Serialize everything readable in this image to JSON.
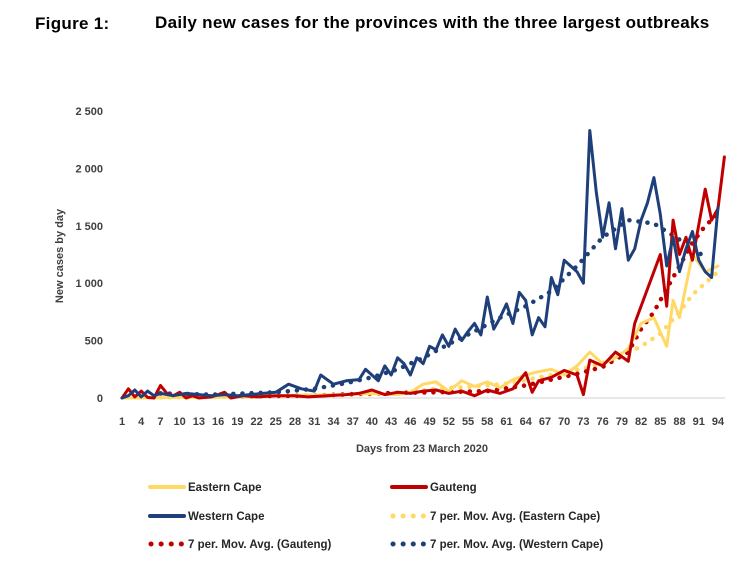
{
  "figure": {
    "label": "Figure 1:",
    "title": "Daily new cases for the provinces with the three largest outbreaks"
  },
  "chart_data": {
    "type": "line",
    "title": "Daily new cases for the provinces with the three largest outbreaks",
    "xlabel": "Days from 23 March 2020",
    "ylabel": "New cases by day",
    "xlim": [
      1,
      95
    ],
    "ylim": [
      0,
      2500
    ],
    "y_ticks": [
      0,
      500,
      1000,
      1500,
      2000,
      2500
    ],
    "y_tick_labels": [
      "0",
      "500",
      "1 000",
      "1 500",
      "2 000",
      "2 500"
    ],
    "x_ticks": [
      1,
      4,
      7,
      10,
      13,
      16,
      19,
      22,
      25,
      28,
      31,
      34,
      37,
      40,
      43,
      46,
      49,
      52,
      55,
      58,
      61,
      64,
      67,
      70,
      73,
      76,
      79,
      82,
      85,
      88,
      91,
      94
    ],
    "x_tick_labels": [
      "1",
      "4",
      "7",
      "10",
      "13",
      "16",
      "19",
      "22",
      "25",
      "28",
      "31",
      "34",
      "37",
      "40",
      "43",
      "46",
      "49",
      "52",
      "55",
      "58",
      "61",
      "64",
      "67",
      "70",
      "73",
      "76",
      "79",
      "82",
      "85",
      "88",
      "91",
      "94"
    ],
    "grid": false,
    "legend_position": "bottom",
    "series": [
      {
        "name": "Eastern Cape",
        "color": "#ffd966",
        "style": "solid",
        "points": [
          [
            1,
            0
          ],
          [
            5,
            0
          ],
          [
            10,
            5
          ],
          [
            15,
            5
          ],
          [
            20,
            10
          ],
          [
            25,
            20
          ],
          [
            30,
            25
          ],
          [
            35,
            30
          ],
          [
            40,
            40
          ],
          [
            44,
            30
          ],
          [
            46,
            50
          ],
          [
            48,
            120
          ],
          [
            50,
            140
          ],
          [
            52,
            60
          ],
          [
            54,
            150
          ],
          [
            56,
            100
          ],
          [
            58,
            140
          ],
          [
            60,
            90
          ],
          [
            62,
            160
          ],
          [
            64,
            200
          ],
          [
            66,
            230
          ],
          [
            68,
            250
          ],
          [
            70,
            200
          ],
          [
            72,
            280
          ],
          [
            74,
            400
          ],
          [
            76,
            300
          ],
          [
            78,
            350
          ],
          [
            80,
            430
          ],
          [
            82,
            650
          ],
          [
            84,
            700
          ],
          [
            86,
            450
          ],
          [
            87,
            850
          ],
          [
            88,
            700
          ],
          [
            90,
            1250
          ],
          [
            92,
            1100
          ],
          [
            94,
            1150
          ]
        ]
      },
      {
        "name": "Gauteng",
        "color": "#c00000",
        "style": "solid",
        "points": [
          [
            1,
            0
          ],
          [
            2,
            80
          ],
          [
            3,
            10
          ],
          [
            4,
            60
          ],
          [
            5,
            5
          ],
          [
            6,
            0
          ],
          [
            7,
            110
          ],
          [
            8,
            40
          ],
          [
            9,
            20
          ],
          [
            10,
            50
          ],
          [
            11,
            0
          ],
          [
            12,
            20
          ],
          [
            13,
            0
          ],
          [
            15,
            10
          ],
          [
            17,
            50
          ],
          [
            18,
            0
          ],
          [
            20,
            20
          ],
          [
            22,
            10
          ],
          [
            25,
            20
          ],
          [
            28,
            20
          ],
          [
            30,
            10
          ],
          [
            33,
            20
          ],
          [
            36,
            30
          ],
          [
            38,
            40
          ],
          [
            40,
            70
          ],
          [
            42,
            30
          ],
          [
            44,
            50
          ],
          [
            46,
            40
          ],
          [
            48,
            60
          ],
          [
            50,
            70
          ],
          [
            52,
            40
          ],
          [
            54,
            60
          ],
          [
            56,
            20
          ],
          [
            58,
            70
          ],
          [
            60,
            40
          ],
          [
            62,
            80
          ],
          [
            64,
            220
          ],
          [
            65,
            50
          ],
          [
            66,
            150
          ],
          [
            68,
            180
          ],
          [
            70,
            240
          ],
          [
            72,
            200
          ],
          [
            73,
            30
          ],
          [
            74,
            330
          ],
          [
            76,
            280
          ],
          [
            78,
            400
          ],
          [
            80,
            320
          ],
          [
            81,
            650
          ],
          [
            83,
            950
          ],
          [
            85,
            1250
          ],
          [
            86,
            800
          ],
          [
            87,
            1550
          ],
          [
            88,
            1250
          ],
          [
            89,
            1400
          ],
          [
            90,
            1200
          ],
          [
            92,
            1820
          ],
          [
            93,
            1550
          ],
          [
            94,
            1650
          ],
          [
            95,
            2100
          ]
        ]
      },
      {
        "name": "Western Cape",
        "color": "#1f3f7a",
        "style": "solid",
        "points": [
          [
            1,
            0
          ],
          [
            2,
            20
          ],
          [
            3,
            70
          ],
          [
            4,
            10
          ],
          [
            5,
            60
          ],
          [
            6,
            20
          ],
          [
            7,
            40
          ],
          [
            9,
            20
          ],
          [
            11,
            40
          ],
          [
            13,
            30
          ],
          [
            15,
            20
          ],
          [
            17,
            30
          ],
          [
            19,
            20
          ],
          [
            21,
            30
          ],
          [
            23,
            40
          ],
          [
            25,
            50
          ],
          [
            27,
            120
          ],
          [
            29,
            80
          ],
          [
            31,
            60
          ],
          [
            32,
            200
          ],
          [
            34,
            120
          ],
          [
            36,
            150
          ],
          [
            38,
            160
          ],
          [
            39,
            250
          ],
          [
            41,
            150
          ],
          [
            42,
            280
          ],
          [
            43,
            200
          ],
          [
            44,
            350
          ],
          [
            45,
            300
          ],
          [
            46,
            200
          ],
          [
            47,
            350
          ],
          [
            48,
            300
          ],
          [
            49,
            450
          ],
          [
            50,
            420
          ],
          [
            51,
            550
          ],
          [
            52,
            450
          ],
          [
            53,
            600
          ],
          [
            54,
            500
          ],
          [
            55,
            580
          ],
          [
            56,
            650
          ],
          [
            57,
            550
          ],
          [
            58,
            880
          ],
          [
            59,
            600
          ],
          [
            60,
            700
          ],
          [
            61,
            820
          ],
          [
            62,
            650
          ],
          [
            63,
            920
          ],
          [
            64,
            850
          ],
          [
            65,
            550
          ],
          [
            66,
            700
          ],
          [
            67,
            620
          ],
          [
            68,
            1050
          ],
          [
            69,
            900
          ],
          [
            70,
            1200
          ],
          [
            71,
            1150
          ],
          [
            72,
            1100
          ],
          [
            73,
            1000
          ],
          [
            74,
            2330
          ],
          [
            75,
            1800
          ],
          [
            76,
            1400
          ],
          [
            77,
            1700
          ],
          [
            78,
            1300
          ],
          [
            79,
            1650
          ],
          [
            80,
            1200
          ],
          [
            81,
            1300
          ],
          [
            82,
            1550
          ],
          [
            83,
            1700
          ],
          [
            84,
            1920
          ],
          [
            85,
            1600
          ],
          [
            86,
            1150
          ],
          [
            87,
            1400
          ],
          [
            88,
            1100
          ],
          [
            89,
            1300
          ],
          [
            90,
            1450
          ],
          [
            91,
            1200
          ],
          [
            92,
            1100
          ],
          [
            93,
            1050
          ],
          [
            94,
            1660
          ]
        ]
      },
      {
        "name": "7 per. Mov. Avg. (Eastern Cape)",
        "color": "#ffd966",
        "style": "dotted",
        "points": [
          [
            7,
            5
          ],
          [
            20,
            10
          ],
          [
            35,
            25
          ],
          [
            44,
            40
          ],
          [
            50,
            80
          ],
          [
            56,
            100
          ],
          [
            62,
            130
          ],
          [
            66,
            180
          ],
          [
            70,
            220
          ],
          [
            74,
            270
          ],
          [
            78,
            340
          ],
          [
            82,
            450
          ],
          [
            85,
            560
          ],
          [
            88,
            750
          ],
          [
            90,
            900
          ],
          [
            92,
            1000
          ],
          [
            94,
            1100
          ]
        ]
      },
      {
        "name": "7 per. Mov. Avg. (Gauteng)",
        "color": "#c00000",
        "style": "dotted",
        "points": [
          [
            7,
            40
          ],
          [
            12,
            25
          ],
          [
            20,
            15
          ],
          [
            30,
            20
          ],
          [
            40,
            40
          ],
          [
            50,
            50
          ],
          [
            58,
            60
          ],
          [
            64,
            110
          ],
          [
            68,
            160
          ],
          [
            72,
            210
          ],
          [
            76,
            270
          ],
          [
            80,
            400
          ],
          [
            82,
            600
          ],
          [
            84,
            750
          ],
          [
            86,
            950
          ],
          [
            88,
            1150
          ],
          [
            90,
            1350
          ],
          [
            92,
            1500
          ],
          [
            94,
            1600
          ]
        ]
      },
      {
        "name": "7 per. Mov. Avg. (Western Cape)",
        "color": "#1f3f7a",
        "style": "dotted",
        "points": [
          [
            7,
            40
          ],
          [
            15,
            30
          ],
          [
            25,
            50
          ],
          [
            31,
            80
          ],
          [
            36,
            130
          ],
          [
            40,
            180
          ],
          [
            44,
            250
          ],
          [
            48,
            350
          ],
          [
            52,
            470
          ],
          [
            56,
            580
          ],
          [
            60,
            700
          ],
          [
            64,
            800
          ],
          [
            68,
            930
          ],
          [
            72,
            1150
          ],
          [
            76,
            1400
          ],
          [
            80,
            1550
          ],
          [
            84,
            1520
          ],
          [
            88,
            1380
          ],
          [
            90,
            1350
          ],
          [
            92,
            1200
          ]
        ]
      }
    ]
  }
}
